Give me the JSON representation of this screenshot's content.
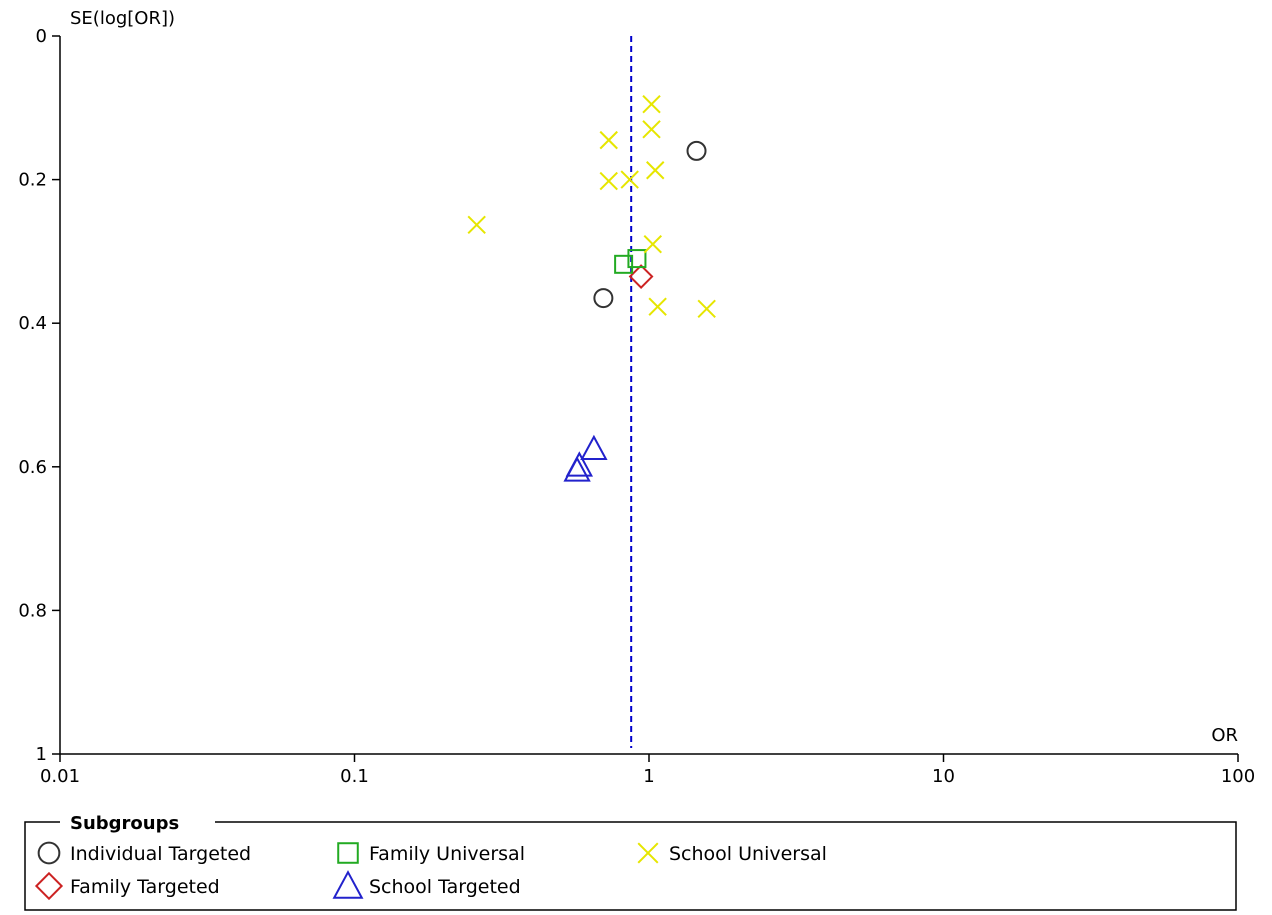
{
  "chart_data": {
    "type": "scatter",
    "title": "",
    "xlabel": "OR",
    "ylabel": "SE(log[OR])",
    "x_scale": "log",
    "xlim": [
      0.01,
      100
    ],
    "ylim": [
      0,
      1
    ],
    "y_inverted": true,
    "x_ticks": [
      "0.01",
      "0.1",
      "1",
      "10",
      "100"
    ],
    "x_tick_values": [
      0.01,
      0.1,
      1,
      10,
      100
    ],
    "y_ticks": [
      "0",
      "0.2",
      "0.4",
      "0.6",
      "0.8",
      "1"
    ],
    "y_tick_values": [
      0,
      0.2,
      0.4,
      0.6,
      0.8,
      1
    ],
    "grid": false,
    "reference_line": {
      "x": 0.87,
      "style": "dashed",
      "color": "#0000cc"
    },
    "legend": {
      "title": "Subgroups",
      "position": "bottom"
    },
    "series": [
      {
        "name": "Individual Targeted",
        "marker": "circle",
        "color": "#333333",
        "points": [
          {
            "x": 1.45,
            "y": 0.16
          },
          {
            "x": 0.7,
            "y": 0.365
          }
        ]
      },
      {
        "name": "Family Targeted",
        "marker": "diamond",
        "color": "#cc2222",
        "points": [
          {
            "x": 0.94,
            "y": 0.335
          }
        ]
      },
      {
        "name": "Family Universal",
        "marker": "square",
        "color": "#22aa22",
        "points": [
          {
            "x": 0.91,
            "y": 0.31
          },
          {
            "x": 0.82,
            "y": 0.318
          }
        ]
      },
      {
        "name": "School Targeted",
        "marker": "triangle",
        "color": "#2222cc",
        "points": [
          {
            "x": 0.65,
            "y": 0.575
          },
          {
            "x": 0.58,
            "y": 0.598
          },
          {
            "x": 0.57,
            "y": 0.605
          }
        ]
      },
      {
        "name": "School Universal",
        "marker": "x",
        "color": "#e6e600",
        "points": [
          {
            "x": 1.02,
            "y": 0.095
          },
          {
            "x": 1.02,
            "y": 0.13
          },
          {
            "x": 0.73,
            "y": 0.145
          },
          {
            "x": 1.05,
            "y": 0.187
          },
          {
            "x": 0.73,
            "y": 0.202
          },
          {
            "x": 0.86,
            "y": 0.2
          },
          {
            "x": 0.26,
            "y": 0.263
          },
          {
            "x": 1.03,
            "y": 0.29
          },
          {
            "x": 1.07,
            "y": 0.377
          },
          {
            "x": 1.57,
            "y": 0.38
          }
        ]
      }
    ]
  }
}
